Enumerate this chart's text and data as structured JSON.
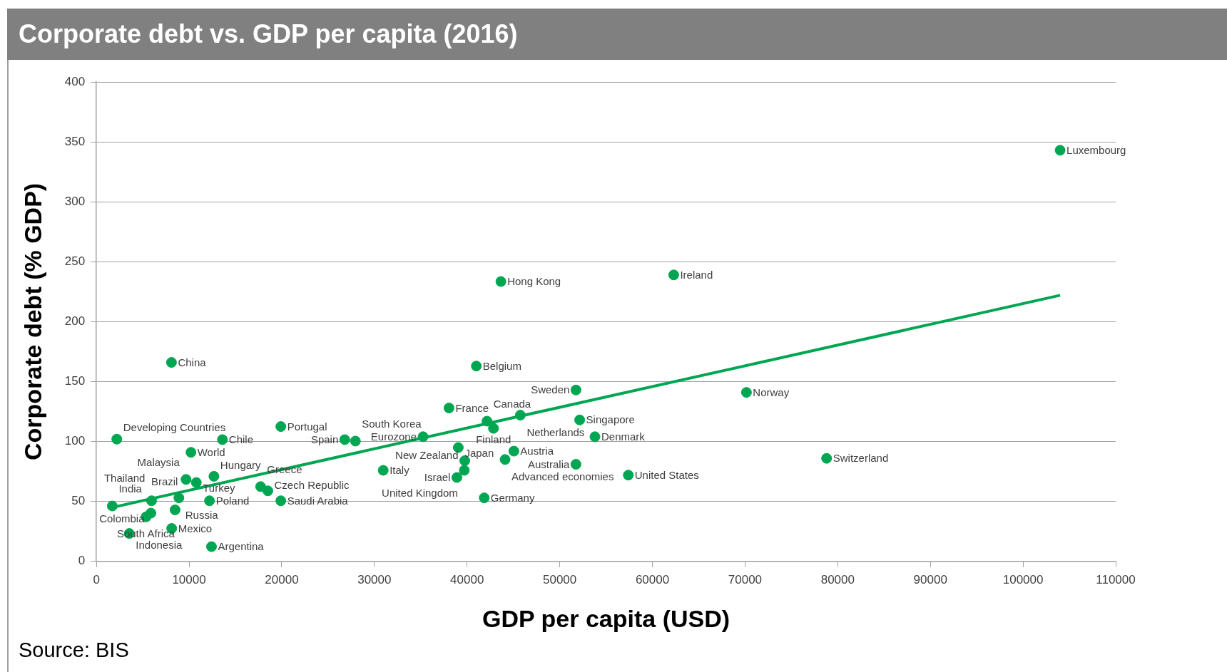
{
  "chart_data": {
    "type": "scatter",
    "title": "Corporate debt vs. GDP per capita (2016)",
    "xlabel": "GDP per capita (USD)",
    "ylabel": "Corporate debt (% GDP)",
    "xlim": [
      0,
      110000
    ],
    "xticks": [
      0,
      10000,
      20000,
      30000,
      40000,
      50000,
      60000,
      70000,
      80000,
      90000,
      100000,
      110000
    ],
    "ylim": [
      0,
      400
    ],
    "yticks": [
      0,
      50,
      100,
      150,
      200,
      250,
      300,
      350,
      400
    ],
    "grid": "y",
    "legend": false,
    "marker": "circle",
    "series": [
      {
        "type": "scatter",
        "color": "#00a651",
        "x": [
          104000,
          62300,
          43650,
          8100,
          41000,
          51750,
          70150,
          38050,
          45750,
          42150,
          52150,
          42850,
          19900,
          2200,
          13600,
          26800,
          27950,
          35250,
          53800,
          10200,
          39050,
          45050,
          78800,
          39750,
          44100,
          51750,
          39700,
          38900,
          30950,
          41850,
          57400,
          9670,
          10780,
          12680,
          17720,
          18500,
          19900,
          1710,
          5950,
          8900,
          12200,
          8490,
          5880,
          5360,
          8120,
          3550,
          12420
        ],
        "values": [
          343,
          239,
          233.5,
          166,
          163,
          143,
          141,
          128,
          122,
          117,
          118,
          111,
          112.5,
          102,
          101.6,
          101.6,
          100.4,
          104,
          104,
          91,
          95,
          92,
          86,
          84,
          85,
          81,
          76,
          70,
          76,
          53,
          72,
          68.4,
          65.8,
          71,
          62.4,
          58.9,
          50.6,
          46.2,
          50.6,
          53,
          50.6,
          43,
          40.3,
          37.2,
          27.5,
          23.3,
          12.3
        ]
      },
      {
        "type": "line",
        "color": "#00a651",
        "marker": "none",
        "x": [
          1700,
          104000
        ],
        "values": [
          45,
          222
        ]
      }
    ],
    "annotations": [
      {
        "text": "Luxembourg",
        "x": 104000,
        "y": 343
      },
      {
        "text": "Ireland",
        "x": 62300,
        "y": 239
      },
      {
        "text": "Hong Kong",
        "x": 43650,
        "y": 233.5
      },
      {
        "text": "China",
        "x": 8100,
        "y": 166
      },
      {
        "text": "Belgium",
        "x": 41000,
        "y": 163
      },
      {
        "text": "Sweden",
        "x": 51750,
        "y": 143
      },
      {
        "text": "Norway",
        "x": 70150,
        "y": 141
      },
      {
        "text": "France",
        "x": 38050,
        "y": 128
      },
      {
        "text": "Netherlands",
        "x": 45750,
        "y": 122
      },
      {
        "text": "Canada",
        "x": 42150,
        "y": 117
      },
      {
        "text": "Singapore",
        "x": 52150,
        "y": 118
      },
      {
        "text": "Finland",
        "x": 42850,
        "y": 111
      },
      {
        "text": "Portugal",
        "x": 19900,
        "y": 112.5
      },
      {
        "text": "Developing Countries",
        "x": 2200,
        "y": 102
      },
      {
        "text": "Chile",
        "x": 13600,
        "y": 101.6
      },
      {
        "text": "Spain",
        "x": 26800,
        "y": 101.6
      },
      {
        "text": "South Korea",
        "x": 27950,
        "y": 100.4
      },
      {
        "text": "Eurozone",
        "x": 35250,
        "y": 104
      },
      {
        "text": "Denmark",
        "x": 53800,
        "y": 104
      },
      {
        "text": "World",
        "x": 10200,
        "y": 91
      },
      {
        "text": "Japan",
        "x": 39050,
        "y": 95
      },
      {
        "text": "Austria",
        "x": 45050,
        "y": 92
      },
      {
        "text": "Switzerland",
        "x": 78800,
        "y": 86
      },
      {
        "text": "New Zealand",
        "x": 39750,
        "y": 84
      },
      {
        "text": "Advanced economies",
        "x": 44100,
        "y": 85
      },
      {
        "text": "Australia",
        "x": 51750,
        "y": 81
      },
      {
        "text": "United Kingdom",
        "x": 39700,
        "y": 76
      },
      {
        "text": "Israel",
        "x": 38900,
        "y": 70
      },
      {
        "text": "Italy",
        "x": 30950,
        "y": 76
      },
      {
        "text": "Germany",
        "x": 41850,
        "y": 53
      },
      {
        "text": "United States",
        "x": 57400,
        "y": 72
      },
      {
        "text": "Malaysia",
        "x": 9670,
        "y": 68.4
      },
      {
        "text": "Turkey",
        "x": 10780,
        "y": 65.8
      },
      {
        "text": "Hungary",
        "x": 12680,
        "y": 71
      },
      {
        "text": "Greece",
        "x": 17720,
        "y": 62.4
      },
      {
        "text": "Czech Republic",
        "x": 18500,
        "y": 58.9
      },
      {
        "text": "Saudi Arabia",
        "x": 19900,
        "y": 50.6
      },
      {
        "text": "India",
        "x": 1710,
        "y": 46.2
      },
      {
        "text": "Thailand",
        "x": 5950,
        "y": 50.6
      },
      {
        "text": "Russia",
        "x": 8900,
        "y": 53
      },
      {
        "text": "Poland",
        "x": 12200,
        "y": 50.6
      },
      {
        "text": "Brazil",
        "x": 8490,
        "y": 43
      },
      {
        "text": "Colombia",
        "x": 5880,
        "y": 40.3
      },
      {
        "text": "South Africa",
        "x": 5360,
        "y": 37.2
      },
      {
        "text": "Mexico",
        "x": 8120,
        "y": 27.5
      },
      {
        "text": "Indonesia",
        "x": 3550,
        "y": 23.3
      },
      {
        "text": "Argentina",
        "x": 12420,
        "y": 12.3
      },
      "Source: BIS"
    ]
  }
}
